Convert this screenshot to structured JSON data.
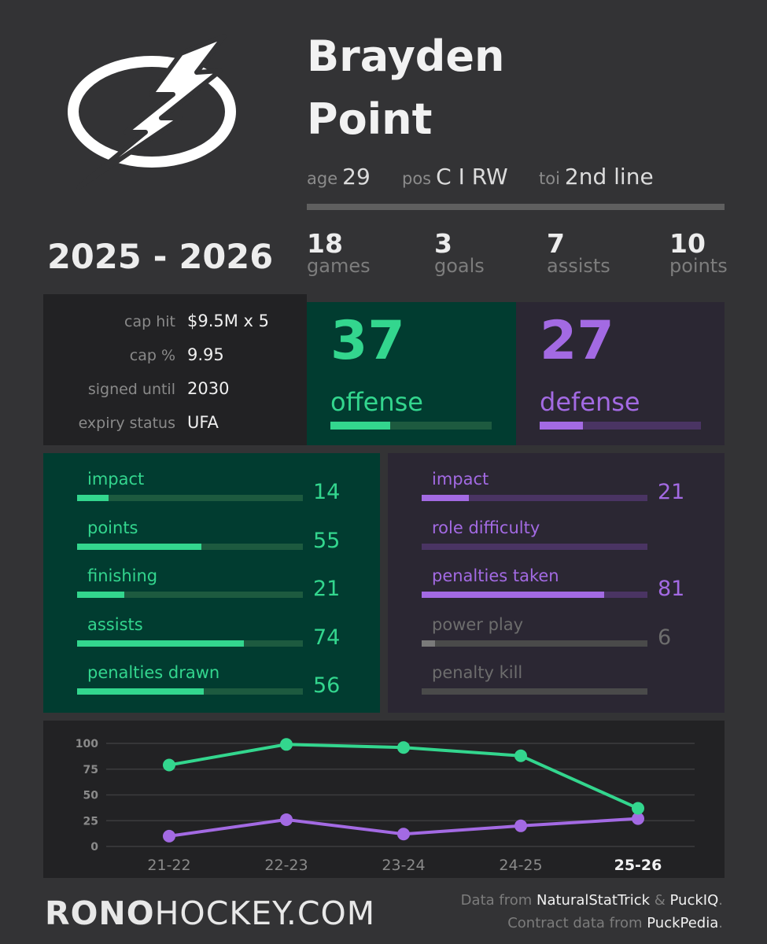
{
  "player": {
    "first_name": "Brayden",
    "last_name": "Point",
    "age_label": "age",
    "age": "29",
    "pos_label": "pos",
    "pos": "C I RW",
    "toi_label": "toi",
    "toi": "2nd line"
  },
  "season": "2025 - 2026",
  "stats": [
    {
      "num": "18",
      "unit": "games"
    },
    {
      "num": "3",
      "unit": "goals"
    },
    {
      "num": "7",
      "unit": "assists"
    },
    {
      "num": "10",
      "unit": "points"
    }
  ],
  "contract": [
    {
      "label": "cap hit",
      "value": "$9.5M x 5"
    },
    {
      "label": "cap %",
      "value": "9.95"
    },
    {
      "label": "signed until",
      "value": "2030"
    },
    {
      "label": "expiry status",
      "value": "UFA"
    }
  ],
  "offense": {
    "value": "37",
    "label": "offense",
    "pct": 37
  },
  "defense": {
    "value": "27",
    "label": "defense",
    "pct": 27
  },
  "offense_metrics": [
    {
      "label": "impact",
      "value": "14",
      "pct": 14
    },
    {
      "label": "points",
      "value": "55",
      "pct": 55
    },
    {
      "label": "finishing",
      "value": "21",
      "pct": 21
    },
    {
      "label": "assists",
      "value": "74",
      "pct": 74
    },
    {
      "label": "penalties drawn",
      "value": "56",
      "pct": 56
    }
  ],
  "defense_metrics": [
    {
      "label": "impact",
      "value": "21",
      "pct": 21,
      "dim": false
    },
    {
      "label": "role difficulty",
      "value": "",
      "pct": 0,
      "dim": false
    },
    {
      "label": "penalties taken",
      "value": "81",
      "pct": 81,
      "dim": false
    },
    {
      "label": "power play",
      "value": "6",
      "pct": 6,
      "dim": true
    },
    {
      "label": "penalty kill",
      "value": "",
      "pct": 0,
      "dim": true
    }
  ],
  "colors": {
    "offense": "#33d68e",
    "offense_track": "#1d5a3f",
    "offense_bg": "#013c30",
    "defense": "#a36ae3",
    "defense_track": "#4a3463",
    "defense_bg": "#2b2733"
  },
  "chart_data": {
    "type": "line",
    "categories": [
      "21-22",
      "22-23",
      "23-24",
      "24-25",
      "25-26"
    ],
    "highlight_category": "25-26",
    "series": [
      {
        "values": [
          79,
          99,
          96,
          88,
          37
        ],
        "color": "#33d68e"
      },
      {
        "values": [
          10,
          26,
          12,
          20,
          27
        ],
        "color": "#a36ae3"
      }
    ],
    "yticks": [
      0,
      25,
      50,
      75,
      100
    ],
    "ylim": [
      0,
      100
    ],
    "grid": true
  },
  "footer": {
    "brand_bold": "RONO",
    "brand_rest": "HOCKEY.COM",
    "credit1_prefix": "Data from ",
    "credit1_src1": "NaturalStatTrick",
    "credit1_amp": " & ",
    "credit1_src2": "PuckIQ",
    "credit1_end": ".",
    "credit2_prefix": "Contract data from ",
    "credit2_src": "PuckPedia",
    "credit2_end": "."
  },
  "logo": {
    "icon": "lightning-bolt-logo"
  }
}
